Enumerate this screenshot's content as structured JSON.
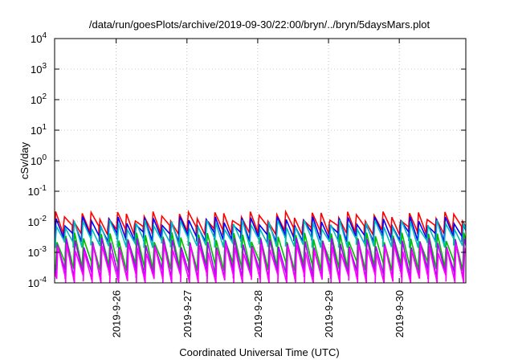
{
  "chart_data": {
    "type": "line",
    "title": "/data/run/goesPlots/archive/2019-09-30/22:00/bryn/../bryn/5daysMars.plot",
    "xlabel": "Coordinated Universal Time (UTC)",
    "ylabel": "cSv/day",
    "yscale": "log",
    "ylim": [
      0.0001,
      10000
    ],
    "xlim_days": [
      25.13,
      30.94
    ],
    "y_ticks": [
      {
        "base": "10",
        "exp": "-4"
      },
      {
        "base": "10",
        "exp": "-3"
      },
      {
        "base": "10",
        "exp": "-2"
      },
      {
        "base": "10",
        "exp": "-1"
      },
      {
        "base": "10",
        "exp": "0"
      },
      {
        "base": "10",
        "exp": "1"
      },
      {
        "base": "10",
        "exp": "2"
      },
      {
        "base": "10",
        "exp": "3"
      },
      {
        "base": "10",
        "exp": "4"
      }
    ],
    "x_ticks": [
      "2019-9-26",
      "2019-9-27",
      "2019-9-28",
      "2019-9-29",
      "2019-9-30"
    ],
    "x_tick_days": [
      26,
      27,
      28,
      29,
      30
    ],
    "grid": true,
    "sawtooth_period_hours": 3,
    "series": [
      {
        "color": "#ff0000",
        "peak": 0.016,
        "trough": 0.0042
      },
      {
        "color": "#0000ff",
        "peak": 0.011,
        "trough": 0.0025
      },
      {
        "color": "#00bbbb",
        "peak": 0.0085,
        "trough": 0.0016
      },
      {
        "color": "#00bb00",
        "peak": 0.0033,
        "trough": 0.00028
      },
      {
        "color": "#aa00ff",
        "peak": 0.0022,
        "trough": 0.00015
      },
      {
        "color": "#ff00ff",
        "peak": 0.0014,
        "trough": 0.0001
      }
    ]
  }
}
